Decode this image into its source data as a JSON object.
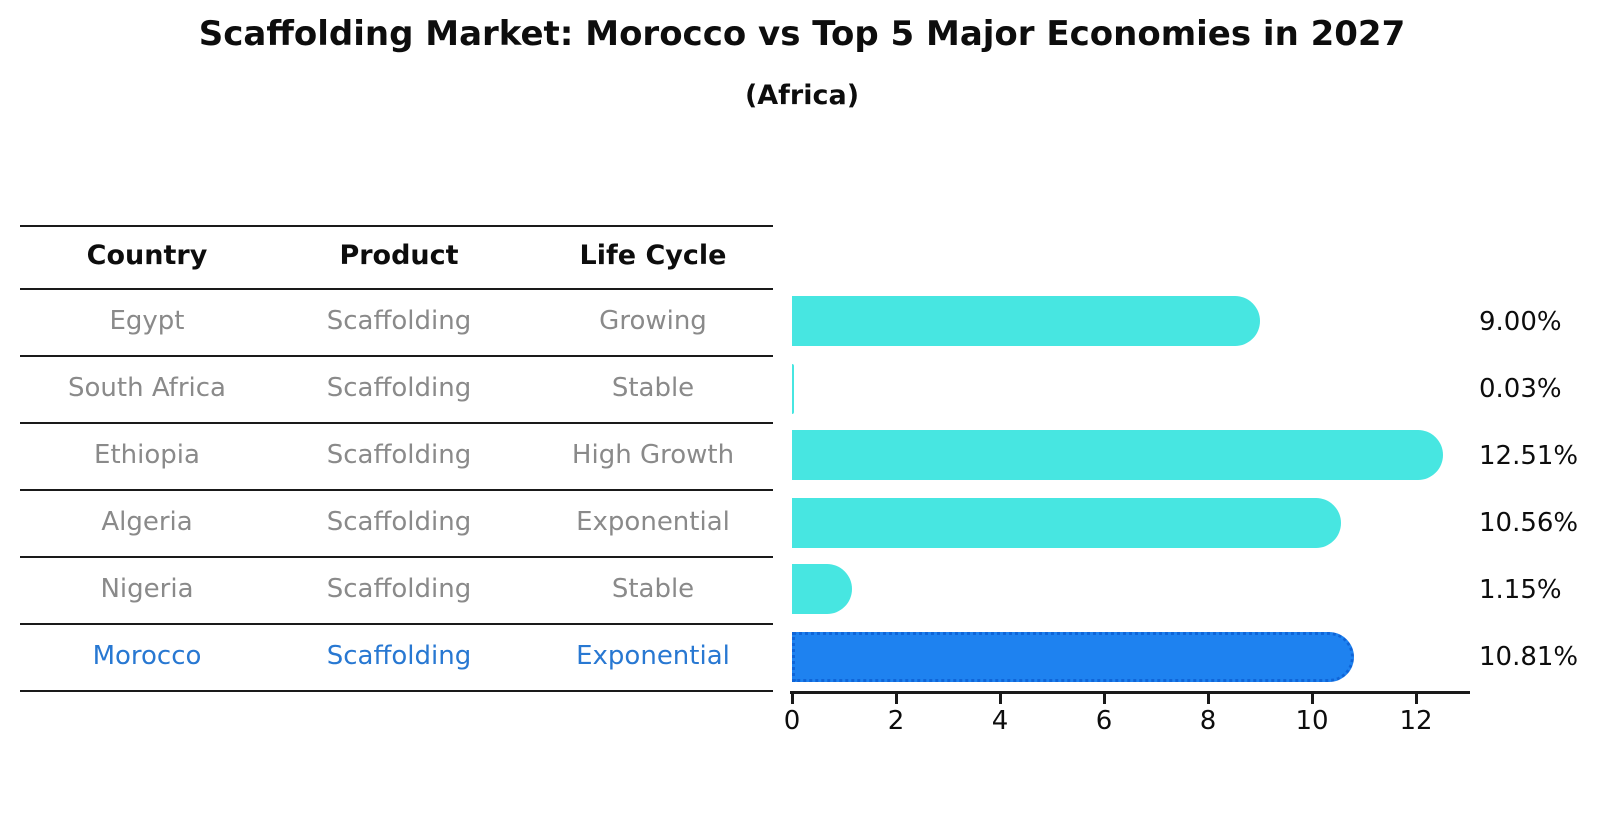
{
  "title": "Scaffolding Market: Morocco vs Top 5 Major Economies in 2027",
  "subtitle": "(Africa)",
  "table": {
    "headers": [
      "Country",
      "Product",
      "Life Cycle"
    ],
    "rows": [
      {
        "country": "Egypt",
        "product": "Scaffolding",
        "life_cycle": "Growing"
      },
      {
        "country": "South Africa",
        "product": "Scaffolding",
        "life_cycle": "Stable"
      },
      {
        "country": "Ethiopia",
        "product": "Scaffolding",
        "life_cycle": "High Growth"
      },
      {
        "country": "Algeria",
        "product": "Scaffolding",
        "life_cycle": "Exponential"
      },
      {
        "country": "Nigeria",
        "product": "Scaffolding",
        "life_cycle": "Stable"
      },
      {
        "country": "Morocco",
        "product": "Scaffolding",
        "life_cycle": "Exponential"
      }
    ]
  },
  "chart_data": {
    "type": "bar",
    "orientation": "horizontal",
    "categories": [
      "Egypt",
      "South Africa",
      "Ethiopia",
      "Algeria",
      "Nigeria",
      "Morocco"
    ],
    "values": [
      9.0,
      0.03,
      12.51,
      10.56,
      1.15,
      10.81
    ],
    "value_labels": [
      "9.00%",
      "0.03%",
      "12.51%",
      "10.56%",
      "1.15%",
      "10.81%"
    ],
    "xticks": [
      0,
      2,
      4,
      6,
      8,
      10,
      12
    ],
    "xlim": [
      0,
      13.0
    ],
    "grid": false,
    "legend": "none",
    "bar_color": "#47e6e1",
    "highlight_color": "#1e82f0",
    "highlight_border_color": "#0f65d8",
    "highlight_index": 5,
    "highlight_category": "Morocco",
    "highlight_text_color": "#2878d2",
    "body_text_color": "#8a8a8a"
  }
}
